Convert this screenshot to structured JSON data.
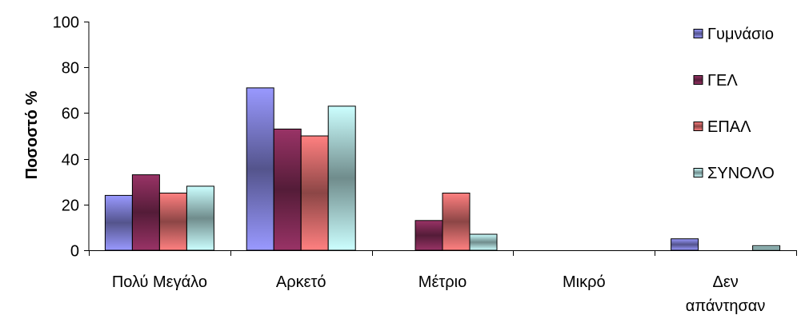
{
  "chart_data": {
    "type": "bar",
    "ylabel": "Ποσοστό %",
    "xlabel": "",
    "ylim": [
      0,
      100
    ],
    "yticks": [
      0,
      20,
      40,
      60,
      80,
      100
    ],
    "categories": [
      [
        "Πολύ Μεγάλο"
      ],
      [
        "Αρκετό"
      ],
      [
        "Μέτριο"
      ],
      [
        "Μικρό"
      ],
      [
        "Δεν",
        "απάντησαν"
      ]
    ],
    "series": [
      {
        "name": "Γυμνάσιο",
        "values": [
          24,
          71,
          0,
          0,
          5
        ],
        "color": "#9999ff"
      },
      {
        "name": "ΓΕΛ",
        "values": [
          33,
          53,
          13,
          0,
          0
        ],
        "color": "#993366"
      },
      {
        "name": "ΕΠΑΛ",
        "values": [
          25,
          50,
          25,
          0,
          0
        ],
        "color": "#ff8080"
      },
      {
        "name": "ΣΥΝΟΛΟ",
        "values": [
          28,
          63,
          7,
          0,
          2
        ],
        "color": "#ccffff"
      }
    ],
    "legend_position": "right",
    "grid": false
  }
}
